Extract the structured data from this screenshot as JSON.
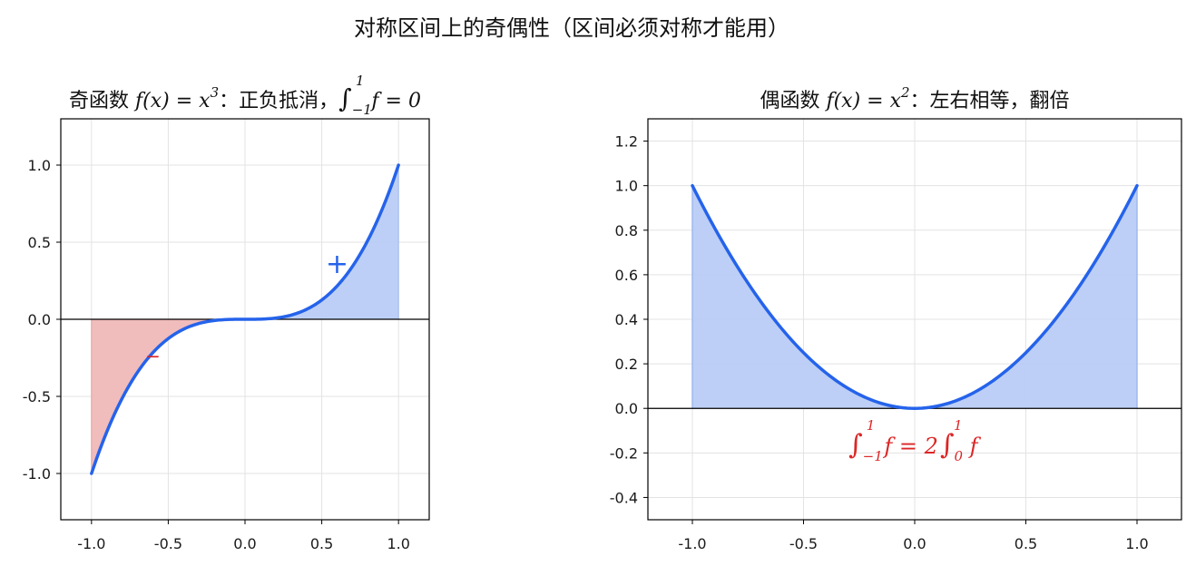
{
  "figure": {
    "suptitle": "对称区间上的奇偶性（区间必须对称才能用）"
  },
  "chart_data": [
    {
      "type": "line",
      "title_prefix": "奇函数 ",
      "title_func": "f(x) = x",
      "title_exp": "3",
      "title_suffix": "：正负抵消，",
      "title_integral": "∫",
      "title_lower": "−1",
      "title_upper": "1",
      "title_tail": "f = 0",
      "function": "x^3",
      "x": [
        -1.0,
        -0.75,
        -0.5,
        -0.25,
        0.0,
        0.25,
        0.5,
        0.75,
        1.0
      ],
      "y": [
        -1.0,
        -0.421875,
        -0.125,
        -0.015625,
        0.0,
        0.015625,
        0.125,
        0.421875,
        1.0
      ],
      "xlim": [
        -1.2,
        1.2
      ],
      "ylim": [
        -1.3,
        1.3
      ],
      "xticks": [
        "-1.0",
        "-0.5",
        "0.0",
        "0.5",
        "1.0"
      ],
      "xtick_values": [
        -1.0,
        -0.5,
        0.0,
        0.5,
        1.0
      ],
      "yticks": [
        "-1.0",
        "-0.5",
        "0.0",
        "0.5",
        "1.0"
      ],
      "ytick_values": [
        -1.0,
        -0.5,
        0.0,
        0.5,
        1.0
      ],
      "grid": true,
      "fill_negative_color": "#f0b8b8",
      "fill_positive_color": "#b9ccf5",
      "line_color": "#2563eb",
      "annotations": [
        {
          "text": "+",
          "x": 0.6,
          "y": 0.36,
          "color": "#2563eb"
        },
        {
          "text": "−",
          "x": -0.6,
          "y": -0.22,
          "color": "#dc2626"
        }
      ]
    },
    {
      "type": "line",
      "title_prefix": "偶函数 ",
      "title_func": "f(x) = x",
      "title_exp": "2",
      "title_suffix": "：左右相等，翻倍",
      "function": "x^2",
      "x": [
        -1.0,
        -0.75,
        -0.5,
        -0.25,
        0.0,
        0.25,
        0.5,
        0.75,
        1.0
      ],
      "y": [
        1.0,
        0.5625,
        0.25,
        0.0625,
        0.0,
        0.0625,
        0.25,
        0.5625,
        1.0
      ],
      "xlim": [
        -1.2,
        1.2
      ],
      "ylim": [
        -0.5,
        1.3
      ],
      "xticks": [
        "-1.0",
        "-0.5",
        "0.0",
        "0.5",
        "1.0"
      ],
      "xtick_values": [
        -1.0,
        -0.5,
        0.0,
        0.5,
        1.0
      ],
      "yticks": [
        "-0.4",
        "-0.2",
        "0.0",
        "0.2",
        "0.4",
        "0.6",
        "0.8",
        "1.0",
        "1.2"
      ],
      "ytick_values": [
        -0.4,
        -0.2,
        0.0,
        0.2,
        0.4,
        0.6,
        0.8,
        1.0,
        1.2
      ],
      "grid": true,
      "fill_color": "#b9ccf5",
      "line_color": "#2563eb",
      "annotation": {
        "lhs_integral": "∫",
        "lhs_lower": "−1",
        "lhs_upper": "1",
        "lhs_f": "f = 2",
        "rhs_integral": "∫",
        "rhs_lower": "0",
        "rhs_upper": "1",
        "rhs_f": "f",
        "x": 0.0,
        "y": -0.15,
        "color": "#dc2626"
      }
    }
  ]
}
